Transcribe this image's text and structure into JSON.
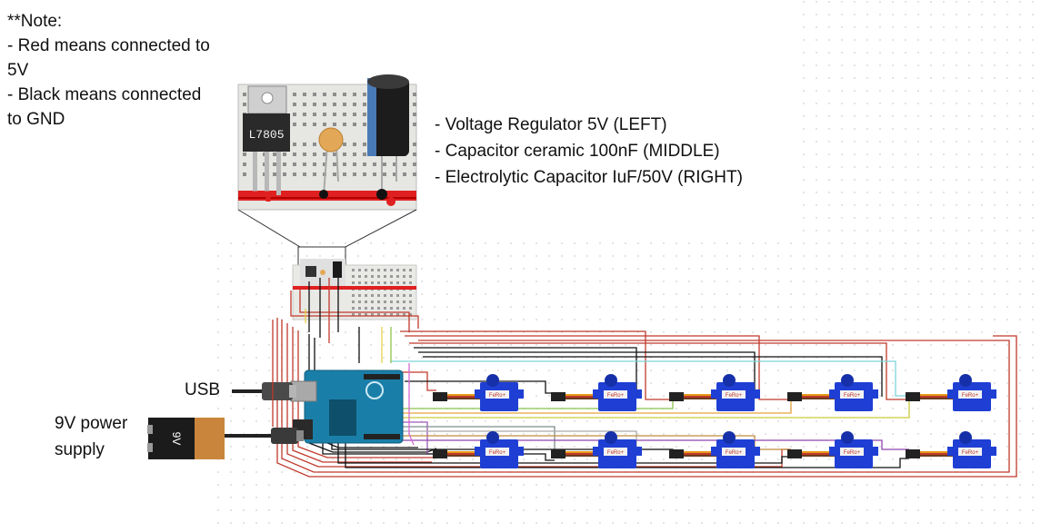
{
  "note": {
    "title": "**Note:",
    "line1": "- Red means connected to",
    "line2": "5V",
    "line3": "- Black means connected",
    "line4": "to GND"
  },
  "components_list": {
    "item1": "- Voltage Regulator 5V (LEFT)",
    "item2": "- Capacitor ceramic 100nF (MIDDLE)",
    "item3": "- Electrolytic Capacitor IuF/50V (RIGHT)"
  },
  "regulator_marking": "L7805",
  "battery_marking": "9V",
  "labels": {
    "usb": "USB",
    "power_line1": "9V power",
    "power_line2": "supply"
  },
  "servo_marking": "FeRo+",
  "servo_count": 10,
  "colors": {
    "wire_5v": "#c0392b",
    "wire_gnd": "#111111",
    "arduino": "#1a7fa8",
    "servo": "#1f3fd4",
    "servo_lead": "#e59a1a",
    "breadboard": "#e9e9e6",
    "rail_red": "#e02020"
  }
}
